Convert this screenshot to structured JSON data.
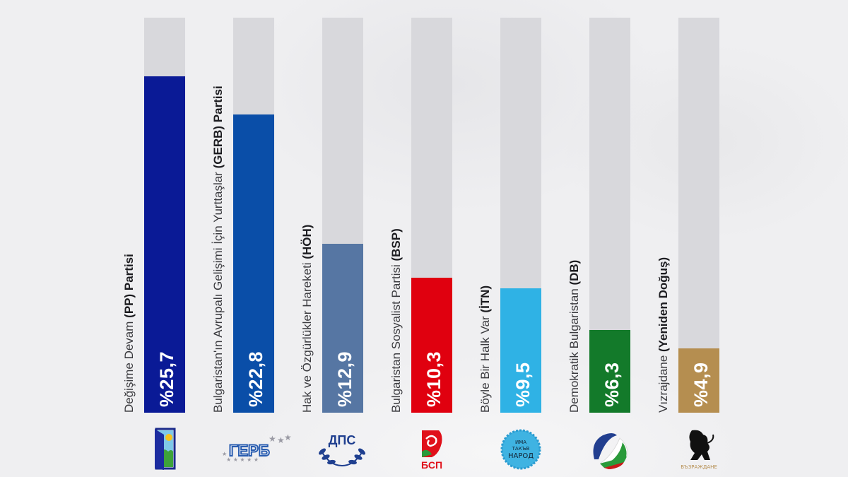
{
  "chart_data": {
    "type": "bar",
    "orientation": "vertical",
    "title": "",
    "xlabel": "",
    "ylabel": "",
    "ylim": [
      0,
      30.2
    ],
    "grid": false,
    "categories": [
      "Değişime Devam (PP) Partisi",
      "Bulgaristan'ın Avrupalı Gelişimi İçin Yurttaşlar (GERB) Partisi",
      "Hak ve Özgürlükler Hareketi (HÖH)",
      "Bulgaristan Sosyalist Partisi (BSP)",
      "Böyle Bir Halk Var (İTN)",
      "Demokratik Bulgaristan (DB)",
      "Vızrajdane (Yeniden Doğuş)"
    ],
    "values": [
      25.7,
      22.8,
      12.9,
      10.3,
      9.5,
      6.3,
      4.9
    ],
    "value_labels": [
      "%25,7",
      "%22,8",
      "%12,9",
      "%10,3",
      "%9,5",
      "%6,3",
      "%4,9"
    ]
  },
  "parties": [
    {
      "label_plain": "Değişime Devam ",
      "label_bold": "(PP)",
      "label_suffix": " Partisi",
      "value": 25.7,
      "value_label": "%25,7",
      "color": "#0a1a96",
      "logo": "pp-door-logo"
    },
    {
      "label_plain": "Bulgaristan'ın Avrupalı Gelişimi İçin Yurttaşlar ",
      "label_bold": "(GERB) Partisi",
      "label_suffix": "",
      "value": 22.8,
      "value_label": "%22,8",
      "color": "#0a4ea8",
      "logo": "gerb-logo",
      "logo_text": "ГЕРБ"
    },
    {
      "label_plain": "Hak ve Özgürlükler Hareketi ",
      "label_bold": "(HÖH)",
      "label_suffix": "",
      "value": 12.9,
      "value_label": "%12,9",
      "color": "#5676a3",
      "logo": "dps-logo",
      "logo_text": "ДПС"
    },
    {
      "label_plain": "Bulgaristan Sosyalist Partisi ",
      "label_bold": "(BSP)",
      "label_suffix": "",
      "value": 10.3,
      "value_label": "%10,3",
      "color": "#e0000f",
      "logo": "bsp-rose-logo",
      "logo_text": "БСП"
    },
    {
      "label_plain": "Böyle Bir Halk Var ",
      "label_bold": "(İTN)",
      "label_suffix": "",
      "value": 9.5,
      "value_label": "%9,5",
      "color": "#2fb2e5",
      "logo": "itn-stamp-logo",
      "logo_text": [
        "ИМА",
        "ТАКЪВ",
        "НАРОД"
      ]
    },
    {
      "label_plain": "Demokratik Bulgaristan ",
      "label_bold": "(DB)",
      "label_suffix": "",
      "value": 6.3,
      "value_label": "%6,3",
      "color": "#137a2a",
      "logo": "db-flag-circle-logo"
    },
    {
      "label_plain": "Vızrajdane ",
      "label_bold": "(Yeniden Doğuş)",
      "label_suffix": "",
      "value": 4.9,
      "value_label": "%4,9",
      "color": "#b58e50",
      "logo": "vazrazhdane-lion-logo",
      "logo_text": "ВЪЗРАЖДАНЕ"
    }
  ],
  "colors": {
    "track": "#d8d8dc",
    "background": "#efeff1",
    "label_text": "#3a3a3e"
  }
}
